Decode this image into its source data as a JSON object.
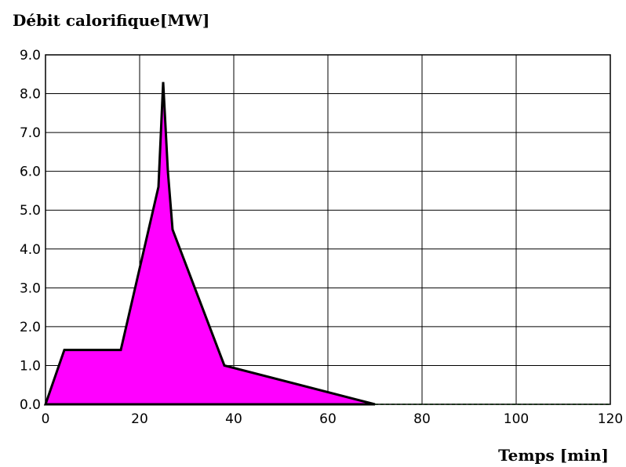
{
  "chart_data": {
    "type": "area",
    "title": "Débit calorifique[MW]",
    "xlabel": "Temps [min]",
    "ylabel": "",
    "xlim": [
      0,
      120
    ],
    "ylim": [
      0,
      9
    ],
    "xticks": [
      "0",
      "20",
      "40",
      "60",
      "80",
      "100",
      "120"
    ],
    "yticks": [
      "0.0",
      "1.0",
      "2.0",
      "3.0",
      "4.0",
      "5.0",
      "6.0",
      "7.0",
      "8.0",
      "9.0"
    ],
    "grid": true,
    "colors": {
      "fill": "#ff00ff",
      "outline": "#000000",
      "tail": "#00b000"
    },
    "series": [
      {
        "x": [
          0,
          4,
          16,
          24,
          25,
          26,
          27,
          38,
          70,
          120
        ],
        "y": [
          0.0,
          1.4,
          1.4,
          5.6,
          8.3,
          6.0,
          4.5,
          1.0,
          0.0,
          0.0
        ]
      }
    ]
  }
}
